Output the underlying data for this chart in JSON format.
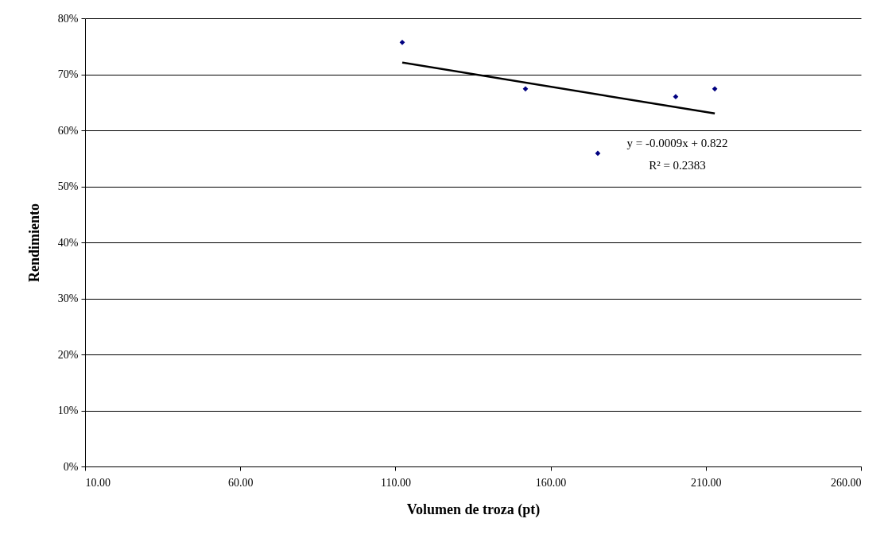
{
  "chart_data": {
    "type": "scatter",
    "xlabel": "Volumen de troza (pt)",
    "ylabel": "Rendimiento",
    "xlim": [
      10,
      260
    ],
    "xticks": [
      {
        "value": 10,
        "label": "10.00"
      },
      {
        "value": 60,
        "label": "60.00"
      },
      {
        "value": 110,
        "label": "110.00"
      },
      {
        "value": 160,
        "label": "160.00"
      },
      {
        "value": 210,
        "label": "210.00"
      },
      {
        "value": 260,
        "label": "260.00"
      }
    ],
    "ylim": [
      0,
      0.8
    ],
    "yticks": [
      {
        "value": 0,
        "label": "0%"
      },
      {
        "value": 0.1,
        "label": "10%"
      },
      {
        "value": 0.2,
        "label": "20%"
      },
      {
        "value": 0.3,
        "label": "30%"
      },
      {
        "value": 0.4,
        "label": "40%"
      },
      {
        "value": 0.5,
        "label": "50%"
      },
      {
        "value": 0.6,
        "label": "60%"
      },
      {
        "value": 0.7,
        "label": "70%"
      },
      {
        "value": 0.8,
        "label": "80%"
      }
    ],
    "grid": "y",
    "series": [
      {
        "marker": "diamond",
        "color": "#000080",
        "x": [
          112.2,
          151.9,
          175.2,
          200.3,
          212.9
        ],
        "values": [
          0.757,
          0.674,
          0.559,
          0.66,
          0.674
        ]
      },
      {
        "type": "line",
        "color": "#000000",
        "x": [
          112.2,
          212.9
        ],
        "values": [
          0.721,
          0.63
        ]
      }
    ],
    "annotations": [
      "y = -0.0009x + 0.822",
      "R² = 0.2383"
    ]
  }
}
